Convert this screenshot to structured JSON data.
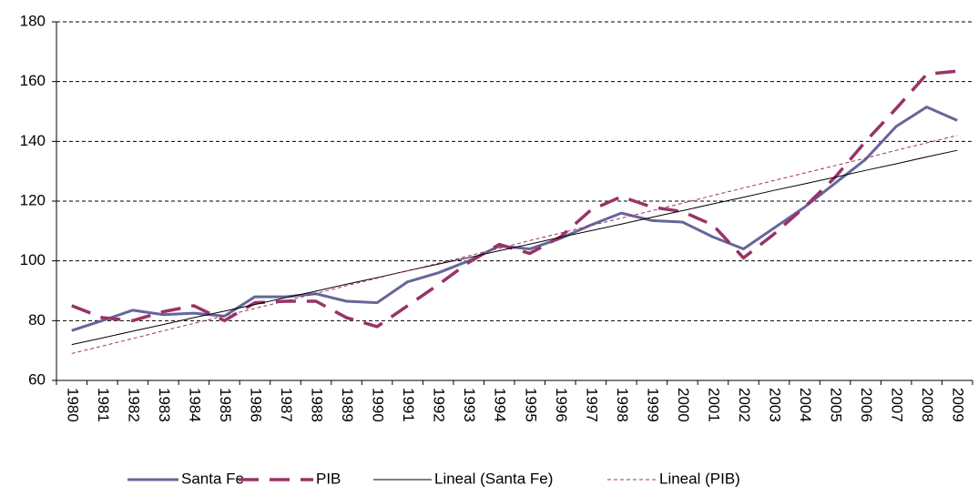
{
  "chart_data": {
    "type": "line",
    "categories": [
      "1980",
      "1981",
      "1982",
      "1983",
      "1984",
      "1985",
      "1986",
      "1987",
      "1988",
      "1989",
      "1990",
      "1991",
      "1992",
      "1993",
      "1994",
      "1995",
      "1996",
      "1997",
      "1998",
      "1999",
      "2000",
      "2001",
      "2002",
      "2003",
      "2004",
      "2005",
      "2006",
      "2007",
      "2008",
      "2009"
    ],
    "series": [
      {
        "name": "Santa Fe",
        "color": "#666699",
        "line_style": "solid",
        "line_width": 3,
        "values": [
          76.7,
          80,
          83.5,
          82,
          82.5,
          81.5,
          88,
          88,
          89,
          86.5,
          86,
          93,
          96,
          100,
          105,
          104,
          107.5,
          112,
          116,
          113.5,
          113,
          108,
          104,
          111,
          118,
          126,
          134,
          145,
          151.5,
          147
        ]
      },
      {
        "name": "PIB",
        "color": "#993366",
        "line_style": "dashed",
        "line_width": 3.5,
        "values": [
          85,
          81,
          80,
          83,
          85,
          80,
          86,
          86.5,
          86.5,
          81,
          78,
          85,
          92,
          99.5,
          105.5,
          102.5,
          108,
          117,
          121.5,
          118,
          116.5,
          112,
          101,
          109,
          118,
          128,
          140,
          151,
          162.5,
          163.5
        ]
      },
      {
        "name": "Lineal (Santa Fe)",
        "color": "#000000",
        "line_style": "solid",
        "line_width": 1,
        "values": [
          72,
          74.2,
          76.5,
          78.7,
          81,
          83.2,
          85.4,
          87.7,
          89.9,
          92.2,
          94.4,
          96.7,
          98.9,
          101.1,
          103.4,
          105.6,
          107.9,
          110.1,
          112.3,
          114.6,
          116.8,
          119.1,
          121.3,
          123.6,
          125.8,
          128,
          130.3,
          132.5,
          134.8,
          137
        ]
      },
      {
        "name": "Lineal (PIB)",
        "color": "#993366",
        "line_style": "dotted",
        "line_width": 1,
        "values": [
          69,
          71.5,
          74,
          76.6,
          79.1,
          81.6,
          84.1,
          86.6,
          89.1,
          91.7,
          94.2,
          96.7,
          99.2,
          101.7,
          104.2,
          106.8,
          109.3,
          111.8,
          114.3,
          116.8,
          119.3,
          121.9,
          124.4,
          126.9,
          129.4,
          131.9,
          134.4,
          137,
          139.5,
          142
        ]
      }
    ],
    "ylim": [
      60,
      180
    ],
    "yticks": [
      60,
      80,
      100,
      120,
      140,
      160,
      180
    ],
    "grid": true,
    "legend": "bottom"
  }
}
